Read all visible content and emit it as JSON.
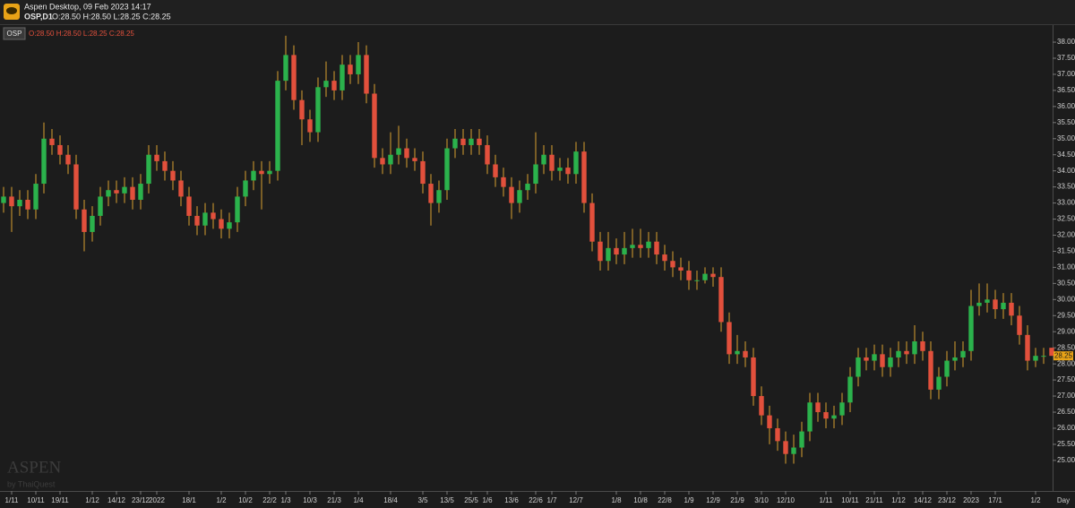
{
  "header": {
    "app": "Aspen Desktop, 09 Feb 2023 14:17",
    "symbol_period": "OSP,D1"
  },
  "watermark": {
    "brand": "ASPEN",
    "by": "by ThaiQuest"
  },
  "chart_data": {
    "type": "candlestick",
    "symbol": "OSP",
    "ohlc_text": "O:28.50 H:28.50 L:28.25 C:28.25",
    "period_label": "Day",
    "up_color": "#2bb24c",
    "down_color": "#e2503c",
    "wick_color": "#d9a030",
    "grid": false,
    "ylim": [
      24.05,
      38.53
    ],
    "yticks": [
      {
        "value": 25,
        "label": "25.00"
      },
      {
        "value": 25.5,
        "label": "25.50"
      },
      {
        "value": 26,
        "label": "26.00"
      },
      {
        "value": 26.5,
        "label": "26.50"
      },
      {
        "value": 27,
        "label": "27.00"
      },
      {
        "value": 27.5,
        "label": "27.50"
      },
      {
        "value": 28,
        "label": "28.00"
      },
      {
        "value": 28.5,
        "label": "28.50"
      },
      {
        "value": 29,
        "label": "29.00"
      },
      {
        "value": 29.5,
        "label": "29.50"
      },
      {
        "value": 30,
        "label": "30.00"
      },
      {
        "value": 30.5,
        "label": "30.50"
      },
      {
        "value": 31,
        "label": "31.00"
      },
      {
        "value": 31.5,
        "label": "31.50"
      },
      {
        "value": 32,
        "label": "32.00"
      },
      {
        "value": 32.5,
        "label": "32.50"
      },
      {
        "value": 33,
        "label": "33.00"
      },
      {
        "value": 33.5,
        "label": "33.50"
      },
      {
        "value": 34,
        "label": "34.00"
      },
      {
        "value": 34.5,
        "label": "34.50"
      },
      {
        "value": 35,
        "label": "35.00"
      },
      {
        "value": 35.5,
        "label": "35.50"
      },
      {
        "value": 36,
        "label": "36.00"
      },
      {
        "value": 36.5,
        "label": "36.50"
      },
      {
        "value": 37,
        "label": "37.00"
      },
      {
        "value": 37.5,
        "label": "37.50"
      },
      {
        "value": 38,
        "label": "38.00"
      }
    ],
    "categories": [
      null,
      "1/11",
      null,
      null,
      "10/11",
      null,
      null,
      "19/11",
      null,
      null,
      null,
      "1/12",
      null,
      null,
      "14/12",
      null,
      null,
      "23/12",
      null,
      "2022",
      null,
      null,
      null,
      "18/1",
      null,
      null,
      null,
      "1/2",
      null,
      null,
      "10/2",
      null,
      null,
      "22/2",
      null,
      "1/3",
      null,
      null,
      "10/3",
      null,
      null,
      "21/3",
      null,
      null,
      "1/4",
      null,
      null,
      null,
      "18/4",
      null,
      null,
      null,
      "3/5",
      null,
      null,
      "13/5",
      null,
      null,
      "25/5",
      null,
      "1/6",
      null,
      null,
      "13/6",
      null,
      null,
      "22/6",
      null,
      "1/7",
      null,
      null,
      "12/7",
      null,
      null,
      null,
      null,
      "1/8",
      null,
      null,
      "10/8",
      null,
      null,
      "22/8",
      null,
      null,
      "1/9",
      null,
      null,
      "12/9",
      null,
      null,
      "21/9",
      null,
      null,
      "3/10",
      null,
      null,
      "12/10",
      null,
      null,
      null,
      null,
      "1/11",
      null,
      null,
      "10/11",
      null,
      null,
      "21/11",
      null,
      null,
      "1/12",
      null,
      null,
      "14/12",
      null,
      null,
      "23/12",
      null,
      null,
      "2023",
      null,
      null,
      "17/1",
      null,
      null,
      null,
      null,
      "1/2",
      null,
      null
    ],
    "open": [
      33.0,
      33.2,
      32.9,
      33.1,
      32.8,
      33.6,
      35.0,
      34.8,
      34.5,
      34.2,
      32.8,
      32.1,
      32.6,
      33.2,
      33.4,
      33.3,
      33.5,
      33.1,
      33.6,
      34.5,
      34.3,
      34.0,
      33.7,
      33.2,
      32.6,
      32.3,
      32.7,
      32.5,
      32.2,
      32.4,
      33.2,
      33.7,
      34.0,
      33.9,
      34.0,
      36.8,
      37.6,
      36.2,
      35.6,
      35.2,
      36.6,
      36.8,
      36.5,
      37.3,
      37.0,
      37.6,
      36.4,
      34.4,
      34.2,
      34.5,
      34.7,
      34.4,
      34.3,
      33.6,
      33.0,
      33.4,
      34.7,
      35.0,
      34.8,
      35.0,
      34.8,
      34.2,
      33.8,
      33.5,
      33.0,
      33.4,
      33.6,
      34.2,
      34.5,
      34.0,
      34.1,
      33.9,
      34.6,
      33.0,
      31.8,
      31.2,
      31.6,
      31.4,
      31.6,
      31.7,
      31.6,
      31.8,
      31.4,
      31.2,
      31.0,
      30.9,
      30.6,
      30.6,
      30.8,
      30.7,
      29.3,
      28.3,
      28.4,
      28.2,
      27.0,
      26.4,
      26.0,
      25.6,
      25.2,
      25.4,
      25.9,
      26.8,
      26.5,
      26.3,
      26.4,
      26.8,
      27.6,
      28.2,
      28.1,
      28.3,
      27.9,
      28.2,
      28.4,
      28.3,
      28.7,
      28.4,
      27.2,
      27.6,
      28.1,
      28.2,
      28.4,
      29.8,
      29.9,
      30.0,
      29.7,
      29.9,
      29.5,
      28.9,
      28.1,
      28.25,
      28.5
    ],
    "high": [
      33.5,
      33.5,
      33.4,
      33.4,
      33.9,
      35.5,
      35.3,
      35.1,
      34.8,
      34.5,
      33.1,
      32.9,
      33.5,
      33.7,
      33.7,
      33.8,
      33.8,
      33.9,
      34.8,
      34.8,
      34.6,
      34.3,
      34.0,
      33.5,
      32.9,
      33.0,
      33.0,
      32.8,
      32.7,
      33.5,
      34.0,
      34.3,
      34.3,
      34.3,
      37.1,
      38.2,
      37.9,
      36.5,
      35.9,
      36.9,
      37.4,
      37.1,
      37.6,
      37.6,
      38.0,
      37.9,
      36.7,
      34.7,
      35.2,
      35.4,
      35.0,
      34.7,
      34.6,
      33.9,
      33.7,
      35.0,
      35.3,
      35.3,
      35.3,
      35.3,
      35.1,
      34.5,
      34.1,
      33.8,
      33.7,
      33.9,
      35.2,
      34.8,
      34.8,
      34.4,
      34.4,
      34.9,
      34.9,
      33.3,
      32.1,
      32.1,
      31.9,
      32.1,
      32.2,
      32.2,
      32.1,
      32.1,
      31.7,
      31.5,
      31.3,
      31.2,
      30.9,
      31.0,
      31.0,
      31.0,
      29.6,
      28.9,
      28.7,
      28.5,
      27.3,
      26.7,
      26.3,
      25.9,
      25.8,
      26.2,
      27.1,
      27.1,
      26.8,
      26.7,
      27.1,
      27.9,
      28.5,
      28.5,
      28.6,
      28.6,
      28.5,
      28.7,
      28.7,
      29.2,
      29.0,
      28.7,
      27.9,
      28.4,
      28.7,
      28.7,
      30.3,
      30.5,
      30.5,
      30.3,
      30.2,
      30.2,
      29.8,
      29.2,
      28.5,
      28.5,
      28.5
    ],
    "low": [
      32.7,
      32.1,
      32.6,
      32.5,
      32.5,
      33.3,
      34.5,
      34.2,
      33.9,
      32.5,
      31.5,
      31.8,
      32.3,
      32.9,
      33.0,
      33.0,
      32.8,
      32.8,
      33.3,
      34.0,
      33.7,
      33.4,
      32.9,
      32.3,
      32.0,
      32.0,
      32.2,
      31.9,
      31.9,
      32.1,
      32.9,
      33.4,
      32.8,
      33.6,
      33.7,
      36.5,
      35.9,
      34.8,
      34.9,
      34.9,
      36.3,
      36.2,
      36.2,
      36.7,
      36.7,
      36.1,
      34.1,
      33.9,
      33.9,
      34.2,
      34.1,
      34.0,
      33.3,
      32.3,
      32.7,
      33.1,
      34.4,
      34.5,
      34.5,
      34.5,
      33.9,
      33.5,
      33.2,
      32.5,
      32.7,
      33.1,
      33.3,
      33.9,
      33.7,
      33.7,
      33.6,
      33.6,
      32.7,
      31.5,
      30.9,
      30.9,
      31.1,
      31.1,
      31.3,
      31.3,
      31.3,
      31.1,
      30.9,
      30.7,
      30.6,
      30.3,
      30.3,
      30.5,
      30.4,
      29.0,
      28.0,
      28.0,
      27.9,
      26.7,
      26.1,
      25.5,
      25.3,
      24.9,
      24.9,
      25.1,
      25.6,
      26.2,
      26.0,
      26.0,
      26.1,
      26.5,
      27.3,
      27.8,
      27.8,
      27.6,
      27.6,
      27.9,
      28.0,
      28.0,
      28.1,
      26.9,
      26.9,
      27.3,
      27.8,
      27.9,
      28.1,
      29.5,
      29.6,
      29.4,
      29.4,
      29.2,
      28.6,
      27.8,
      27.9,
      28.0,
      28.25
    ],
    "close": [
      33.2,
      32.9,
      33.1,
      32.8,
      33.6,
      35.0,
      34.8,
      34.5,
      34.2,
      32.8,
      32.1,
      32.6,
      33.2,
      33.4,
      33.3,
      33.5,
      33.1,
      33.6,
      34.5,
      34.3,
      34.0,
      33.7,
      33.2,
      32.6,
      32.3,
      32.7,
      32.5,
      32.2,
      32.4,
      33.2,
      33.7,
      34.0,
      33.9,
      34.0,
      36.8,
      37.6,
      36.2,
      35.6,
      35.2,
      36.6,
      36.8,
      36.5,
      37.3,
      37.0,
      37.6,
      36.4,
      34.4,
      34.2,
      34.5,
      34.7,
      34.4,
      34.3,
      33.6,
      33.0,
      33.4,
      34.7,
      35.0,
      34.8,
      35.0,
      34.8,
      34.2,
      33.8,
      33.5,
      33.0,
      33.4,
      33.6,
      34.2,
      34.5,
      34.0,
      34.1,
      33.9,
      34.6,
      33.0,
      31.8,
      31.2,
      31.6,
      31.4,
      31.6,
      31.7,
      31.6,
      31.8,
      31.4,
      31.2,
      31.0,
      30.9,
      30.6,
      30.6,
      30.8,
      30.7,
      29.3,
      28.3,
      28.4,
      28.2,
      27.0,
      26.4,
      26.0,
      25.6,
      25.2,
      25.4,
      25.9,
      26.8,
      26.5,
      26.3,
      26.4,
      26.8,
      27.6,
      28.2,
      28.1,
      28.3,
      27.9,
      28.2,
      28.4,
      28.3,
      28.7,
      28.4,
      27.2,
      27.6,
      28.1,
      28.2,
      28.4,
      29.8,
      29.9,
      30.0,
      29.7,
      29.9,
      29.5,
      28.9,
      28.1,
      28.25,
      28.25,
      28.25
    ]
  }
}
